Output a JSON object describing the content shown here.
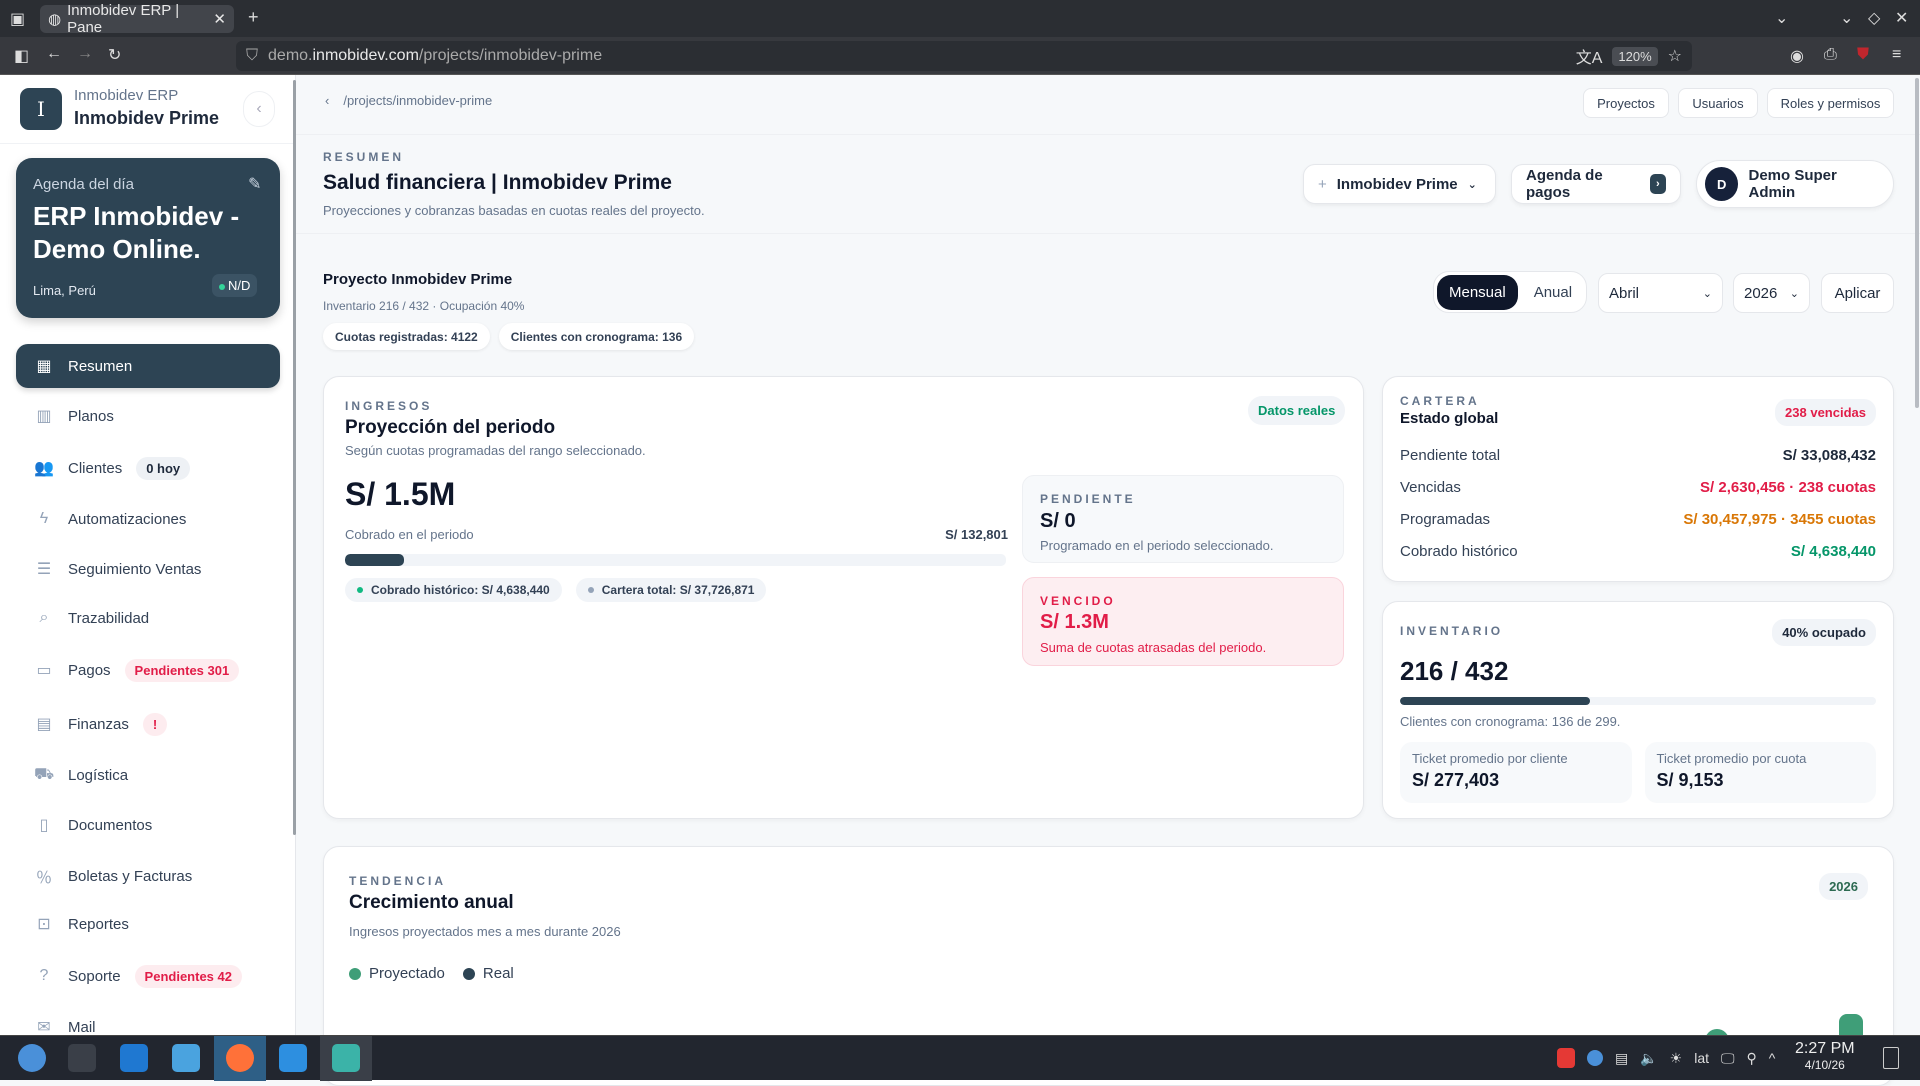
{
  "browser": {
    "tab_title": "Inmobidev ERP | Pane",
    "url_prefix": "demo.",
    "url_domain": "inmobidev.com",
    "url_path": "/projects/inmobidev-prime",
    "zoom": "120%"
  },
  "sidebar": {
    "brand_letter": "I",
    "brand_sub": "Inmobidev ERP",
    "brand_name": "Inmobidev Prime",
    "agenda": {
      "label": "Agenda del día",
      "title": "ERP Inmobidev - Demo Online.",
      "location": "Lima, Perú",
      "status": "N/D"
    },
    "items": [
      {
        "label": "Resumen",
        "icon": "grid-icon",
        "glyph": "▦",
        "active": true
      },
      {
        "label": "Planos",
        "icon": "building-icon",
        "glyph": "▥"
      },
      {
        "label": "Clientes",
        "icon": "users-icon",
        "glyph": "👥",
        "badge": "0 hoy",
        "badge_type": "gray"
      },
      {
        "label": "Automatizaciones",
        "icon": "bolt-icon",
        "glyph": "ϟ"
      },
      {
        "label": "Seguimiento Ventas",
        "icon": "list-icon",
        "glyph": "☰"
      },
      {
        "label": "Trazabilidad",
        "icon": "search-icon",
        "glyph": "⌕"
      },
      {
        "label": "Pagos",
        "icon": "money-icon",
        "glyph": "▭",
        "badge": "Pendientes 301",
        "badge_type": "red"
      },
      {
        "label": "Finanzas",
        "icon": "archive-icon",
        "glyph": "▤",
        "badge": "!",
        "badge_type": "red"
      },
      {
        "label": "Logística",
        "icon": "truck-icon",
        "glyph": "⛟"
      },
      {
        "label": "Documentos",
        "icon": "document-icon",
        "glyph": "▯"
      },
      {
        "label": "Boletas y Facturas",
        "icon": "receipt-icon",
        "glyph": "％"
      },
      {
        "label": "Reportes",
        "icon": "presentation-icon",
        "glyph": "⊡"
      },
      {
        "label": "Soporte",
        "icon": "help-icon",
        "glyph": "?",
        "badge": "Pendientes 42",
        "badge_type": "red"
      },
      {
        "label": "Mail",
        "icon": "mail-icon",
        "glyph": "✉"
      }
    ]
  },
  "header": {
    "breadcrumb": "/projects/inmobidev-prime",
    "links": [
      "Proyectos",
      "Usuarios",
      "Roles y permisos"
    ]
  },
  "summary": {
    "eyebrow": "RESUMEN",
    "title": "Salud financiera | Inmobidev Prime",
    "subtitle": "Proyecciones y cobranzas basadas en cuotas reales del proyecto.",
    "project_select": "Inmobidev Prime",
    "agenda_button": "Agenda de pagos",
    "user_initial": "D",
    "user_name": "Demo Super Admin"
  },
  "project": {
    "title": "Proyecto Inmobidev Prime",
    "inventory_line": "Inventario 216 / 432 · Ocupación 40%",
    "chips": [
      "Cuotas registradas: 4122",
      "Clientes con cronograma: 136"
    ],
    "period_modes": [
      "Mensual",
      "Anual"
    ],
    "active_mode": "Mensual",
    "month": "Abril",
    "year": "2026",
    "apply": "Aplicar"
  },
  "ingresos": {
    "eyebrow": "INGRESOS",
    "title": "Proyección del periodo",
    "subtitle": "Según cuotas programadas del rango seleccionado.",
    "badge": "Datos reales",
    "total": "S/ 1.5M",
    "collected_label": "Cobrado en el periodo",
    "collected_value": "S/ 132,801",
    "collected_fraction": 0.09,
    "legend": [
      "Cobrado histórico: S/ 4,638,440",
      "Cartera total: S/ 37,726,871"
    ],
    "pendiente": {
      "label": "PENDIENTE",
      "value": "S/ 0",
      "note": "Programado en el periodo seleccionado."
    },
    "vencido": {
      "label": "VENCIDO",
      "value": "S/ 1.3M",
      "note": "Suma de cuotas atrasadas del periodo."
    }
  },
  "cartera": {
    "eyebrow": "CARTERA",
    "title": "Estado global",
    "badge": "238 vencidas",
    "rows": [
      {
        "label": "Pendiente total",
        "value": "S/ 33,088,432",
        "color": "#1e293b"
      },
      {
        "label": "Vencidas",
        "value": "S/ 2,630,456 · 238 cuotas",
        "color": "#e11d48"
      },
      {
        "label": "Programadas",
        "value": "S/ 30,457,975 · 3455 cuotas",
        "color": "#d97706"
      },
      {
        "label": "Cobrado histórico",
        "value": "S/ 4,638,440",
        "color": "#059669"
      }
    ]
  },
  "inventario": {
    "eyebrow": "INVENTARIO",
    "badge": "40% ocupado",
    "value": "216 / 432",
    "occupancy": 0.4,
    "note": "Clientes con cronograma: 136 de 299.",
    "tickets": [
      {
        "label": "Ticket promedio por cliente",
        "value": "S/ 277,403"
      },
      {
        "label": "Ticket promedio por cuota",
        "value": "S/ 9,153"
      }
    ]
  },
  "tendencia": {
    "eyebrow": "TENDENCIA",
    "title": "Crecimiento anual",
    "subtitle": "Ingresos proyectados mes a mes durante 2026",
    "badge": "2026"
  },
  "chart_data": {
    "type": "bar",
    "title": "Crecimiento anual",
    "subtitle": "Ingresos proyectados mes a mes durante 2026",
    "series": [
      {
        "name": "Proyectado",
        "color": "#3f9e78"
      },
      {
        "name": "Real",
        "color": "#2d4454"
      }
    ],
    "legend": "top-left"
  },
  "taskbar": {
    "keyboard": "lat",
    "time": "2:27 PM",
    "date": "4/10/26"
  }
}
